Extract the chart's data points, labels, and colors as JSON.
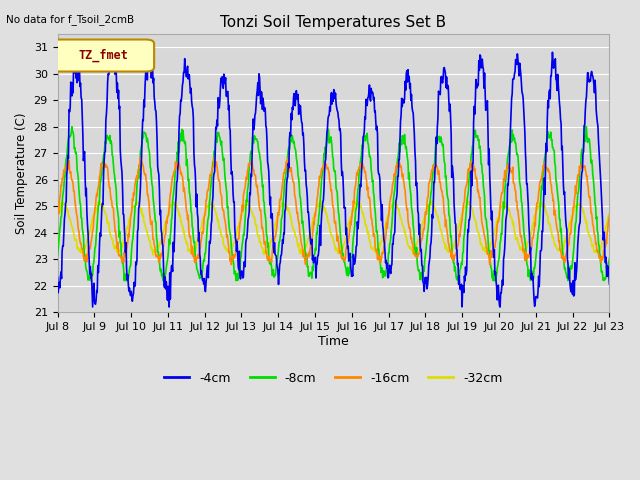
{
  "title": "Tonzi Soil Temperatures Set B",
  "no_data_label": "No data for f_Tsoil_2cmB",
  "legend_box_label": "TZ_fmet",
  "ylabel": "Soil Temperature (C)",
  "xlabel": "Time",
  "ylim": [
    21.0,
    31.5
  ],
  "yticks": [
    21.0,
    22.0,
    23.0,
    24.0,
    25.0,
    26.0,
    27.0,
    28.0,
    29.0,
    30.0,
    31.0
  ],
  "fig_bg": "#e0e0e0",
  "plot_bg": "#d8d8d8",
  "grid_color": "#ffffff",
  "lines": {
    "-4cm": {
      "color": "#0000ee",
      "lw": 1.2
    },
    "-8cm": {
      "color": "#00dd00",
      "lw": 1.2
    },
    "-16cm": {
      "color": "#ff8800",
      "lw": 1.2
    },
    "-32cm": {
      "color": "#dddd00",
      "lw": 1.2
    }
  },
  "xtick_labels": [
    "Jul 8",
    "Jul 9",
    "Jul 10",
    "Jul 11",
    "Jul 12",
    "Jul 13",
    "Jul 14",
    "Jul 15",
    "Jul 16",
    "Jul 17",
    "Jul 18",
    "Jul 19",
    "Jul 20",
    "Jul 21",
    "Jul 22",
    "Jul 23"
  ],
  "n_points": 960,
  "days": 15
}
